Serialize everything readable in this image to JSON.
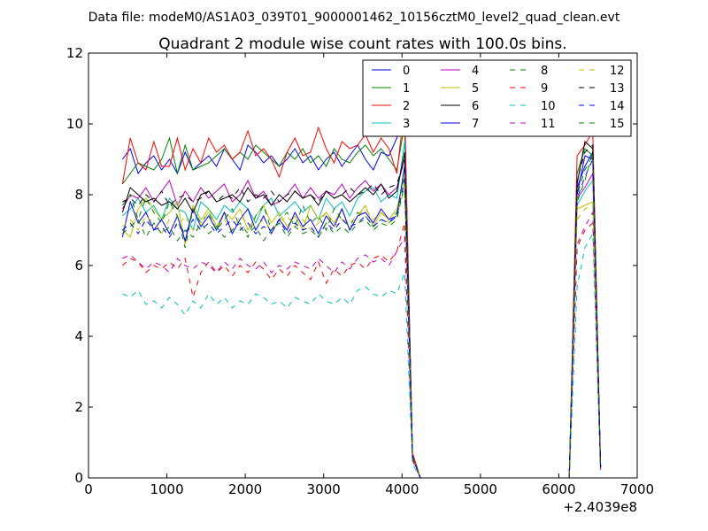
{
  "chart_data": {
    "type": "line",
    "suptitle": "Data file: modeM0/AS1A03_039T01_9000001462_10156cztM0_level2_quad_clean.evt",
    "title": "Quadrant 2 module wise count rates with 100.0s bins.",
    "xlabel": "",
    "ylabel": "",
    "x_offset_label": "+2.4039e8",
    "xlim": [
      0,
      7000
    ],
    "ylim": [
      0,
      12
    ],
    "xticks": [
      0,
      1000,
      2000,
      3000,
      4000,
      5000,
      6000,
      7000
    ],
    "yticks": [
      0,
      2,
      4,
      6,
      8,
      10,
      12
    ],
    "xtick_labels": [
      "0",
      "1000",
      "2000",
      "3000",
      "4000",
      "5000",
      "6000",
      "7000"
    ],
    "ytick_labels": [
      "0",
      "2",
      "4",
      "6",
      "8",
      "10",
      "12"
    ],
    "grid": false,
    "legend": "top-right",
    "x": [
      433,
      533,
      633,
      733,
      833,
      933,
      1033,
      1133,
      1233,
      1333,
      1433,
      1533,
      1633,
      1733,
      1833,
      1933,
      2033,
      2133,
      2233,
      2333,
      2433,
      2533,
      2633,
      2733,
      2833,
      2933,
      3033,
      3133,
      3233,
      3333,
      3433,
      3533,
      3633,
      3733,
      3833,
      3933,
      4033,
      4133,
      4233,
      6133,
      6233,
      6333,
      6433,
      6533
    ],
    "series": [
      {
        "name": "0",
        "color": "#0000ff",
        "dash": "solid",
        "values": [
          9.0,
          9.3,
          8.6,
          8.9,
          9.1,
          8.7,
          9.0,
          8.6,
          9.2,
          8.7,
          8.9,
          9.1,
          8.8,
          9.3,
          9.0,
          8.7,
          9.4,
          9.2,
          8.9,
          9.1,
          8.8,
          9.0,
          9.3,
          8.9,
          9.1,
          8.7,
          9.0,
          9.2,
          8.8,
          9.1,
          9.4,
          9.0,
          8.7,
          9.2,
          9.1,
          9.6,
          10.2,
          0.7,
          0.0,
          0.0,
          8.2,
          8.8,
          9.2,
          0.3
        ]
      },
      {
        "name": "1",
        "color": "#008000",
        "dash": "solid",
        "values": [
          8.3,
          8.6,
          8.9,
          8.8,
          8.7,
          9.0,
          9.6,
          8.6,
          9.4,
          8.7,
          8.8,
          8.9,
          9.1,
          9.3,
          9.0,
          9.2,
          9.0,
          9.4,
          9.2,
          9.0,
          8.8,
          9.2,
          9.0,
          9.3,
          8.9,
          9.1,
          8.8,
          9.3,
          9.0,
          8.9,
          9.2,
          9.4,
          9.1,
          9.3,
          9.0,
          8.7,
          10.0,
          0.7,
          0.0,
          0.0,
          8.6,
          9.3,
          9.1,
          0.3
        ]
      },
      {
        "name": "2",
        "color": "#ff0000",
        "dash": "solid",
        "values": [
          8.3,
          9.6,
          8.9,
          8.7,
          9.5,
          8.8,
          8.8,
          9.6,
          8.7,
          9.3,
          8.9,
          9.6,
          9.2,
          9.4,
          9.0,
          9.2,
          9.8,
          9.1,
          9.3,
          9.0,
          8.5,
          9.2,
          9.6,
          9.1,
          9.2,
          9.9,
          9.3,
          8.9,
          9.5,
          9.3,
          9.4,
          9.7,
          9.2,
          9.6,
          9.3,
          8.6,
          10.5,
          0.7,
          0.0,
          0.0,
          9.1,
          9.4,
          9.8,
          0.3
        ]
      },
      {
        "name": "3",
        "color": "#00bfbf",
        "dash": "solid",
        "values": [
          7.4,
          7.6,
          7.9,
          7.5,
          7.7,
          7.3,
          7.9,
          7.6,
          7.5,
          7.0,
          7.8,
          7.6,
          7.3,
          7.7,
          7.5,
          7.8,
          7.6,
          7.2,
          7.7,
          7.9,
          7.4,
          7.6,
          7.8,
          7.5,
          7.7,
          7.3,
          7.9,
          7.6,
          7.8,
          7.4,
          7.9,
          8.1,
          8.2,
          7.8,
          8.0,
          7.9,
          9.5,
          0.6,
          0.0,
          0.0,
          7.7,
          8.1,
          8.4,
          0.3
        ]
      },
      {
        "name": "4",
        "color": "#bf00bf",
        "dash": "solid",
        "values": [
          7.6,
          8.0,
          7.9,
          8.2,
          7.8,
          8.1,
          8.4,
          7.7,
          8.1,
          7.8,
          8.2,
          7.9,
          8.1,
          8.3,
          7.8,
          8.0,
          8.4,
          7.9,
          8.1,
          7.7,
          7.8,
          8.0,
          8.3,
          7.9,
          8.2,
          7.9,
          8.1,
          8.0,
          8.3,
          7.9,
          8.2,
          8.4,
          8.1,
          8.3,
          8.0,
          8.2,
          9.0,
          0.6,
          0.0,
          0.0,
          7.9,
          8.2,
          8.6,
          0.3
        ]
      },
      {
        "name": "5",
        "color": "#bfbf00",
        "dash": "solid",
        "values": [
          7.0,
          6.8,
          7.6,
          7.9,
          7.6,
          7.3,
          7.5,
          7.8,
          6.6,
          7.7,
          7.3,
          7.6,
          7.1,
          7.5,
          7.3,
          7.6,
          7.0,
          7.4,
          7.7,
          7.2,
          7.5,
          7.1,
          7.4,
          7.0,
          7.7,
          7.3,
          7.5,
          7.2,
          7.6,
          7.0,
          7.4,
          7.7,
          7.1,
          7.5,
          7.3,
          7.6,
          8.5,
          0.6,
          0.0,
          0.0,
          7.6,
          7.7,
          7.8,
          0.3
        ]
      },
      {
        "name": "6",
        "color": "#000000",
        "dash": "solid",
        "values": [
          7.5,
          8.2,
          8.0,
          7.8,
          7.9,
          7.7,
          7.8,
          7.6,
          7.9,
          7.5,
          8.0,
          8.1,
          7.8,
          7.9,
          8.0,
          7.8,
          8.2,
          7.9,
          8.0,
          7.7,
          8.0,
          7.8,
          8.1,
          7.9,
          8.0,
          7.7,
          8.1,
          7.9,
          8.0,
          7.8,
          8.0,
          8.2,
          8.0,
          8.3,
          7.9,
          8.1,
          9.2,
          0.6,
          0.0,
          0.0,
          8.3,
          9.5,
          9.3,
          0.3
        ]
      },
      {
        "name": "7",
        "color": "#0000ff",
        "dash": "solid",
        "values": [
          6.8,
          7.8,
          7.2,
          7.5,
          7.0,
          7.3,
          6.9,
          7.4,
          6.7,
          7.6,
          7.1,
          7.4,
          7.0,
          7.5,
          6.9,
          7.3,
          7.6,
          7.0,
          7.4,
          6.9,
          7.3,
          7.0,
          7.5,
          7.1,
          7.3,
          6.9,
          7.4,
          7.1,
          7.6,
          7.0,
          7.4,
          7.5,
          7.2,
          7.6,
          7.3,
          7.4,
          8.8,
          0.6,
          0.0,
          0.0,
          8.0,
          9.1,
          9.0,
          0.3
        ]
      },
      {
        "name": "8",
        "color": "#008000",
        "dash": "dashed",
        "values": [
          7.7,
          8.0,
          7.3,
          7.9,
          7.5,
          7.2,
          7.8,
          7.4,
          6.5,
          7.6,
          7.2,
          7.5,
          7.0,
          7.3,
          7.6,
          7.1,
          6.8,
          7.4,
          7.7,
          7.0,
          7.3,
          7.5,
          7.1,
          7.7,
          7.2,
          7.4,
          7.0,
          7.6,
          7.3,
          7.1,
          7.5,
          7.4,
          7.1,
          7.3,
          7.2,
          7.5,
          8.6,
          0.6,
          0.0,
          0.0,
          7.8,
          8.4,
          9.2,
          0.3
        ]
      },
      {
        "name": "9",
        "color": "#ff0000",
        "dash": "dashed",
        "values": [
          6.0,
          6.2,
          6.1,
          5.8,
          6.0,
          5.9,
          6.1,
          5.9,
          6.2,
          5.1,
          5.8,
          6.1,
          5.8,
          6.0,
          5.7,
          6.0,
          5.8,
          6.1,
          5.9,
          5.6,
          5.9,
          5.7,
          6.0,
          5.8,
          5.6,
          6.1,
          5.5,
          5.9,
          5.7,
          6.0,
          6.1,
          5.9,
          6.2,
          6.3,
          6.1,
          6.4,
          7.2,
          0.5,
          0.0,
          0.0,
          6.5,
          7.0,
          7.2,
          0.2
        ]
      },
      {
        "name": "10",
        "color": "#00bfbf",
        "dash": "dashed",
        "values": [
          5.2,
          5.1,
          5.3,
          4.9,
          5.0,
          4.8,
          5.1,
          4.9,
          4.6,
          5.0,
          4.8,
          5.2,
          4.9,
          5.1,
          4.8,
          5.0,
          4.9,
          5.2,
          5.1,
          4.9,
          5.0,
          4.8,
          5.1,
          5.0,
          4.9,
          5.2,
          5.0,
          4.9,
          5.1,
          4.9,
          5.3,
          5.4,
          5.2,
          5.1,
          5.3,
          5.2,
          5.8,
          0.4,
          0.0,
          0.0,
          5.4,
          6.5,
          6.9,
          0.2
        ]
      },
      {
        "name": "11",
        "color": "#bf00bf",
        "dash": "dashed",
        "values": [
          6.2,
          6.3,
          6.1,
          5.9,
          6.1,
          6.0,
          5.8,
          6.2,
          6.0,
          5.9,
          6.1,
          6.0,
          5.8,
          6.1,
          5.9,
          6.2,
          6.0,
          5.9,
          6.1,
          5.8,
          6.0,
          5.9,
          6.1,
          6.0,
          5.9,
          6.2,
          6.0,
          5.8,
          6.1,
          5.9,
          6.2,
          6.3,
          6.1,
          6.2,
          6.0,
          6.4,
          6.8,
          0.5,
          0.0,
          0.0,
          6.6,
          7.1,
          7.5,
          0.2
        ]
      },
      {
        "name": "12",
        "color": "#bfbf00",
        "dash": "dashed",
        "values": [
          7.1,
          7.3,
          7.0,
          7.4,
          7.2,
          6.9,
          7.3,
          7.1,
          7.4,
          7.0,
          7.2,
          7.5,
          7.1,
          7.3,
          7.0,
          7.4,
          7.2,
          7.1,
          7.3,
          7.0,
          7.2,
          7.4,
          7.1,
          7.3,
          7.0,
          7.2,
          7.5,
          7.1,
          7.3,
          7.2,
          7.4,
          7.6,
          7.3,
          7.5,
          7.2,
          7.4,
          8.2,
          0.6,
          0.0,
          0.0,
          7.3,
          7.6,
          7.7,
          0.3
        ]
      },
      {
        "name": "13",
        "color": "#000000",
        "dash": "dashed",
        "values": [
          7.8,
          7.9,
          7.7,
          8.0,
          7.8,
          8.1,
          7.7,
          7.9,
          8.0,
          7.8,
          7.9,
          8.1,
          7.8,
          8.0,
          7.9,
          8.2,
          7.8,
          8.0,
          7.9,
          8.1,
          7.8,
          8.0,
          8.1,
          7.9,
          8.0,
          7.8,
          8.1,
          7.9,
          8.0,
          8.2,
          8.0,
          8.1,
          8.3,
          8.0,
          8.2,
          8.3,
          9.0,
          0.6,
          0.0,
          0.0,
          8.4,
          9.2,
          9.4,
          0.3
        ]
      },
      {
        "name": "14",
        "color": "#0000ff",
        "dash": "dashed",
        "values": [
          7.0,
          7.2,
          6.9,
          7.3,
          7.0,
          7.1,
          6.8,
          7.2,
          6.9,
          7.3,
          7.0,
          7.2,
          6.9,
          7.1,
          7.3,
          7.0,
          7.2,
          6.9,
          7.1,
          7.0,
          7.3,
          6.9,
          7.2,
          7.0,
          7.1,
          6.8,
          7.2,
          7.0,
          7.3,
          7.1,
          7.2,
          7.4,
          7.1,
          7.3,
          7.2,
          7.4,
          8.4,
          0.6,
          0.0,
          0.0,
          7.9,
          8.5,
          9.0,
          0.3
        ]
      },
      {
        "name": "15",
        "color": "#008000",
        "dash": "dashed",
        "values": [
          6.9,
          7.1,
          7.3,
          6.8,
          7.2,
          6.9,
          7.1,
          6.7,
          7.0,
          6.8,
          7.2,
          6.9,
          7.1,
          6.8,
          7.0,
          7.2,
          6.9,
          7.1,
          6.7,
          7.0,
          7.2,
          6.8,
          7.1,
          6.9,
          7.0,
          6.8,
          7.2,
          6.9,
          7.1,
          6.9,
          7.2,
          7.3,
          7.0,
          7.2,
          7.1,
          7.3,
          8.3,
          0.6,
          0.0,
          0.0,
          8.0,
          8.7,
          9.1,
          0.3
        ]
      }
    ]
  }
}
